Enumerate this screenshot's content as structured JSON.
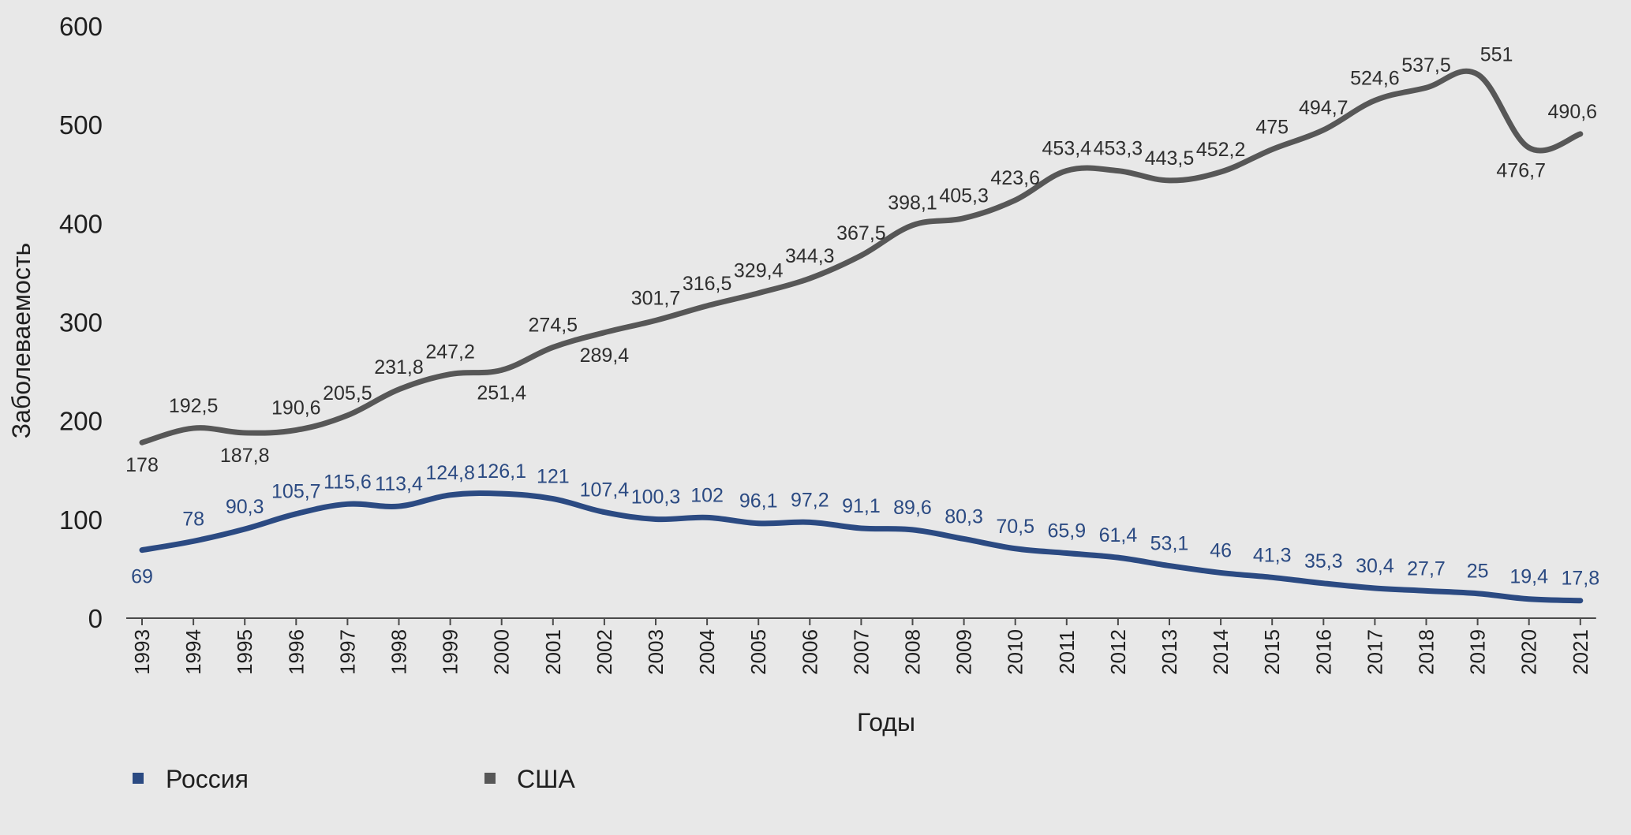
{
  "chart_data": {
    "type": "line",
    "title": "",
    "xlabel": "Годы",
    "ylabel": "Заболеваемость",
    "ylim": [
      0,
      600
    ],
    "yticks": [
      "0",
      "100",
      "200",
      "300",
      "400",
      "500",
      "600"
    ],
    "grid": false,
    "legend_position": "bottom-left",
    "categories": [
      "1993",
      "1994",
      "1995",
      "1996",
      "1997",
      "1998",
      "1999",
      "2000",
      "2001",
      "2002",
      "2003",
      "2004",
      "2005",
      "2006",
      "2007",
      "2008",
      "2009",
      "2010",
      "2011",
      "2012",
      "2013",
      "2014",
      "2015",
      "2016",
      "2017",
      "2018",
      "2019",
      "2020",
      "2021"
    ],
    "series": [
      {
        "name": "Россия",
        "color": "#2b4a82",
        "values": [
          69,
          78,
          90.3,
          105.7,
          115.6,
          113.4,
          124.8,
          126.1,
          121,
          107.4,
          100.3,
          102,
          96.1,
          97.2,
          91.1,
          89.6,
          80.3,
          70.5,
          65.9,
          61.4,
          53.1,
          46,
          41.3,
          35.3,
          30.4,
          27.7,
          25,
          19.4,
          17.8
        ],
        "labels": [
          "69",
          "78",
          "90,3",
          "105,7",
          "115,6",
          "113,4",
          "124,8",
          "126,1",
          "121",
          "107,4",
          "100,3",
          "102",
          "96,1",
          "97,2",
          "91,1",
          "89,6",
          "80,3",
          "70,5",
          "65,9",
          "61,4",
          "53,1",
          "46",
          "41,3",
          "35,3",
          "30,4",
          "27,7",
          "25",
          "19,4",
          "17,8"
        ]
      },
      {
        "name": "США",
        "color": "#575757",
        "values": [
          178,
          192.5,
          187.8,
          190.6,
          205.5,
          231.8,
          247.2,
          251.4,
          274.5,
          289.4,
          301.7,
          316.5,
          329.4,
          344.3,
          367.5,
          398.1,
          405.3,
          423.6,
          453.4,
          453.3,
          443.5,
          452.2,
          475,
          494.7,
          524.6,
          537.5,
          551,
          476.7,
          490.6
        ],
        "labels": [
          "178",
          "192,5",
          "187,8",
          "190,6",
          "205,5",
          "231,8",
          "247,2",
          "251,4",
          "274,5",
          "289,4",
          "301,7",
          "316,5",
          "329,4",
          "344,3",
          "367,5",
          "398,1",
          "405,3",
          "423,6",
          "453,4",
          "453,3",
          "443,5",
          "452,2",
          "475",
          "494,7",
          "524,6",
          "537,5",
          "551",
          "476,7",
          "490,6"
        ]
      }
    ]
  }
}
